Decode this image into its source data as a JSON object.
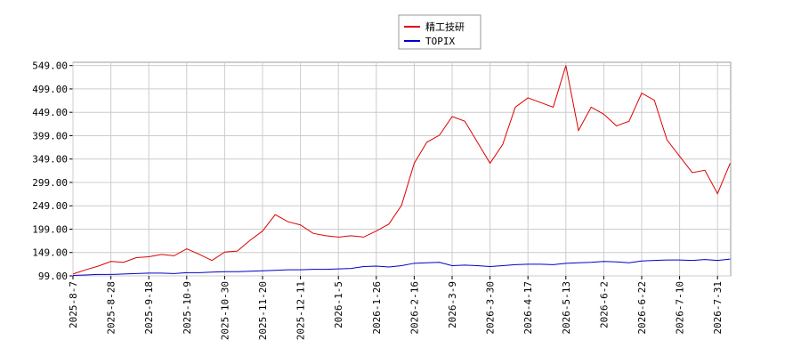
{
  "chart_data": {
    "type": "line",
    "categories": [
      "2025-8-7",
      null,
      null,
      "2025-8-28",
      null,
      null,
      "2025-9-18",
      null,
      null,
      "2025-10-9",
      null,
      null,
      "2025-10-30",
      null,
      null,
      "2025-11-20",
      null,
      null,
      "2025-12-11",
      null,
      null,
      "2026-1-5",
      null,
      null,
      "2026-1-26",
      null,
      null,
      "2026-2-16",
      null,
      null,
      "2026-3-9",
      null,
      null,
      "2026-3-30",
      null,
      null,
      "2026-4-17",
      null,
      null,
      "2026-5-13",
      null,
      null,
      "2026-6-2",
      null,
      null,
      "2026-6-22",
      null,
      null,
      "2026-7-10",
      null,
      null,
      "2026-7-31",
      null
    ],
    "series": [
      {
        "name": "精工技研",
        "color": "#dd0000",
        "values": [
          103,
          112,
          120,
          130,
          128,
          138,
          140,
          145,
          142,
          157,
          145,
          132,
          150,
          152,
          175,
          195,
          230,
          215,
          208,
          190,
          185,
          182,
          185,
          182,
          195,
          210,
          250,
          340,
          385,
          400,
          440,
          430,
          385,
          340,
          380,
          460,
          480,
          470,
          460,
          549,
          410,
          460,
          445,
          420,
          430,
          490,
          475,
          390,
          355,
          320,
          325,
          275,
          340
        ]
      },
      {
        "name": "TOPIX",
        "color": "#0000cc",
        "values": [
          100,
          101,
          102,
          102,
          103,
          104,
          105,
          105,
          104,
          106,
          106,
          107,
          108,
          108,
          109,
          110,
          111,
          112,
          112,
          113,
          113,
          114,
          115,
          119,
          120,
          118,
          121,
          126,
          127,
          128,
          121,
          122,
          121,
          119,
          121,
          123,
          124,
          124,
          123,
          126,
          127,
          128,
          130,
          129,
          127,
          131,
          132,
          133,
          133,
          132,
          134,
          132,
          135
        ]
      }
    ],
    "ylim": [
      99,
      556
    ],
    "yticks": [
      {
        "value": 99,
        "label": "99.00"
      },
      {
        "value": 149,
        "label": "149.00"
      },
      {
        "value": 199,
        "label": "199.00"
      },
      {
        "value": 249,
        "label": "249.00"
      },
      {
        "value": 299,
        "label": "299.00"
      },
      {
        "value": 349,
        "label": "349.00"
      },
      {
        "value": 399,
        "label": "399.00"
      },
      {
        "value": 449,
        "label": "449.00"
      },
      {
        "value": 499,
        "label": "499.00"
      },
      {
        "value": 549,
        "label": "549.00"
      }
    ],
    "grid": true
  }
}
